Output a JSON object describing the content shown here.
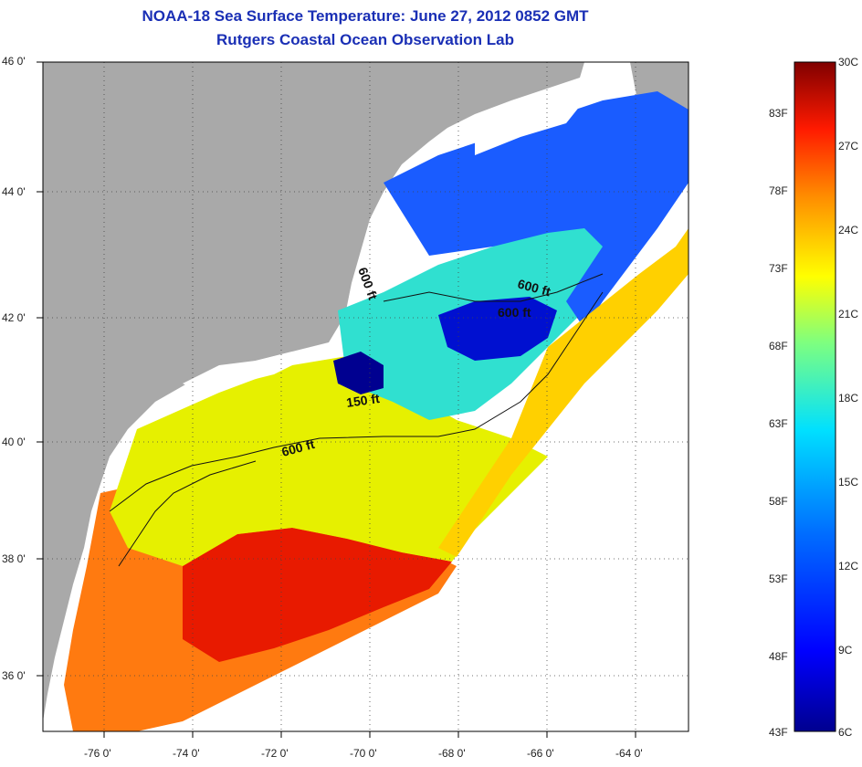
{
  "title": "NOAA-18 Sea Surface Temperature:  June 27, 2012 0852 GMT",
  "subtitle": "Rutgers Coastal Ocean Observation Lab",
  "lat_ticks": [
    {
      "value": 46,
      "label": "46 0'"
    },
    {
      "value": 44,
      "label": "44 0'"
    },
    {
      "value": 42,
      "label": "42 0'"
    },
    {
      "value": 40,
      "label": "40 0'"
    },
    {
      "value": 38,
      "label": "38 0'"
    },
    {
      "value": 36,
      "label": "36 0'"
    }
  ],
  "lon_ticks": [
    {
      "value": -76,
      "label": "-76 0'"
    },
    {
      "value": -74,
      "label": "-74 0'"
    },
    {
      "value": -72,
      "label": "-72 0'"
    },
    {
      "value": -70,
      "label": "-70 0'"
    },
    {
      "value": -68,
      "label": "-68 0'"
    },
    {
      "value": -66,
      "label": "-66 0'"
    },
    {
      "value": -64,
      "label": "-64 0'"
    }
  ],
  "contour_labels": [
    {
      "text": "600 ft"
    },
    {
      "text": "600 ft"
    },
    {
      "text": "600 ft"
    },
    {
      "text": "150 ft"
    },
    {
      "text": "600 ft"
    }
  ],
  "colorbar": {
    "celsius": [
      {
        "value": 30,
        "label": "30C"
      },
      {
        "value": 27,
        "label": "27C"
      },
      {
        "value": 24,
        "label": "24C"
      },
      {
        "value": 21,
        "label": "21C"
      },
      {
        "value": 18,
        "label": "18C"
      },
      {
        "value": 15,
        "label": "15C"
      },
      {
        "value": 12,
        "label": "12C"
      },
      {
        "value": 9,
        "label": "9C"
      },
      {
        "value": 6,
        "label": "6C"
      }
    ],
    "fahrenheit": [
      {
        "value": 83,
        "label": "83F"
      },
      {
        "value": 78,
        "label": "78F"
      },
      {
        "value": 73,
        "label": "73F"
      },
      {
        "value": 68,
        "label": "68F"
      },
      {
        "value": 63,
        "label": "63F"
      },
      {
        "value": 58,
        "label": "58F"
      },
      {
        "value": 53,
        "label": "53F"
      },
      {
        "value": 48,
        "label": "48F"
      },
      {
        "value": 43,
        "label": "43F"
      }
    ]
  },
  "colors": {
    "land": "#a9a9a9",
    "cloud": "#ffffff",
    "title": "#1a2fb5"
  }
}
